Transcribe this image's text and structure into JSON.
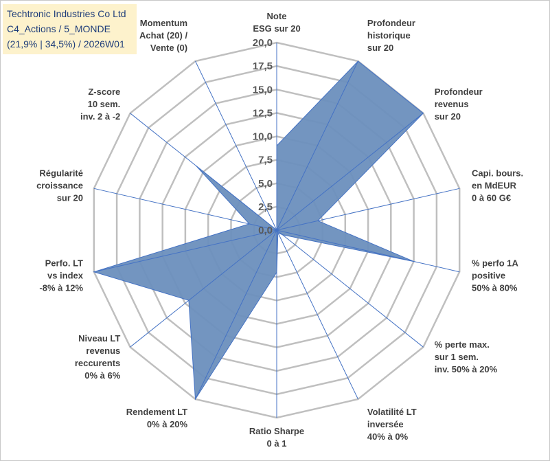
{
  "chart_data": {
    "type": "radar",
    "title_lines": [
      "Techtronic Industries Co Ltd",
      "C4_Actions / 5_MONDE",
      "(21,9% | 34,5%) / 2026W01"
    ],
    "rmin": 0,
    "rmax": 20,
    "ticks": [
      "0,0",
      "2,5",
      "5,0",
      "7,5",
      "10,0",
      "12,5",
      "15,0",
      "17,5",
      "20,0"
    ],
    "axes": [
      {
        "label": [
          "Note",
          "ESG sur 20"
        ],
        "value": 9.0
      },
      {
        "label": [
          "Profondeur",
          "historique",
          "sur 20"
        ],
        "value": 20.0
      },
      {
        "label": [
          "Profondeur",
          "revenus",
          "sur 20"
        ],
        "value": 20.0
      },
      {
        "label": [
          "Capi. bours.",
          "en MdEUR",
          "0 à 60 G€"
        ],
        "value": 4.5
      },
      {
        "label": [
          "% perfo 1A",
          "positive",
          "50% à 80%"
        ],
        "value": 15.0
      },
      {
        "label": [
          "% perte max.",
          "sur 1 sem.",
          "inv. 50% à 20%"
        ],
        "value": 0.8
      },
      {
        "label": [
          "Volatilité LT",
          "inversée",
          "40% à 0%"
        ],
        "value": 0.3
      },
      {
        "label": [
          "Ratio Sharpe",
          "0 à 1"
        ],
        "value": 4.5
      },
      {
        "label": [
          "Rendement LT",
          "0% à 20%"
        ],
        "value": 20.0
      },
      {
        "label": [
          "Niveau LT",
          "revenus",
          "reccurents",
          "0% à 6%"
        ],
        "value": 12.0
      },
      {
        "label": [
          "Perfo. LT",
          "vs index",
          "-8% à 12%"
        ],
        "value": 20.0
      },
      {
        "label": [
          "Régularité",
          "croissance",
          "sur 20"
        ],
        "value": 3.0
      },
      {
        "label": [
          "Z-score",
          "10 sem.",
          "inv. 2 à -2"
        ],
        "value": 11.0
      },
      {
        "label": [
          "Momentum",
          "Achat (20) /",
          "Vente (0)"
        ],
        "value": 0.0
      }
    ],
    "colors": {
      "fill": "#6b8fbd",
      "stroke": "#4472c4",
      "grid": "#bfbfbf",
      "title_bg": "#fdf2cc",
      "title_text": "#1f3d7a"
    }
  }
}
